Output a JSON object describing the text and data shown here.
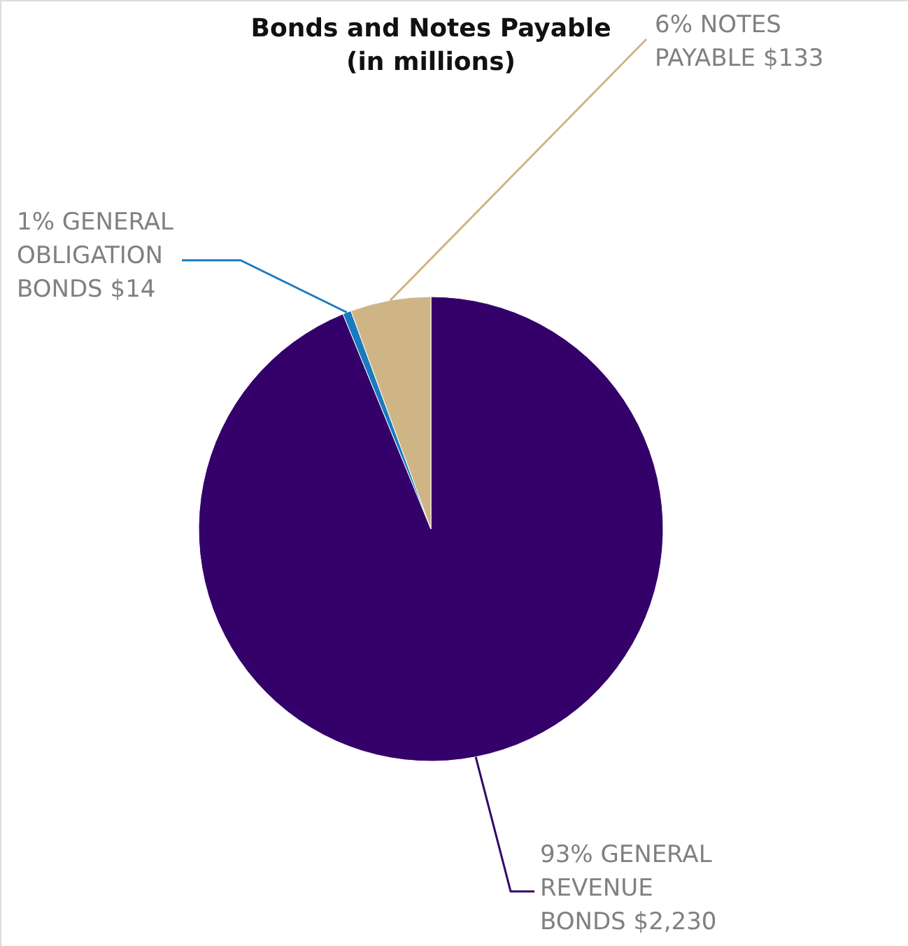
{
  "chart_data": {
    "type": "pie",
    "title": "Bonds and Notes Payable",
    "subtitle": "(in millions)",
    "categories": [
      "93% GENERAL REVENUE BONDS $2,230",
      "1% GENERAL OBLIGATION BONDS $14",
      "6% NOTES PAYABLE $133"
    ],
    "values": [
      2230,
      14,
      133
    ],
    "colors": [
      "#34006a",
      "#1a7abf",
      "#cfb585"
    ]
  }
}
